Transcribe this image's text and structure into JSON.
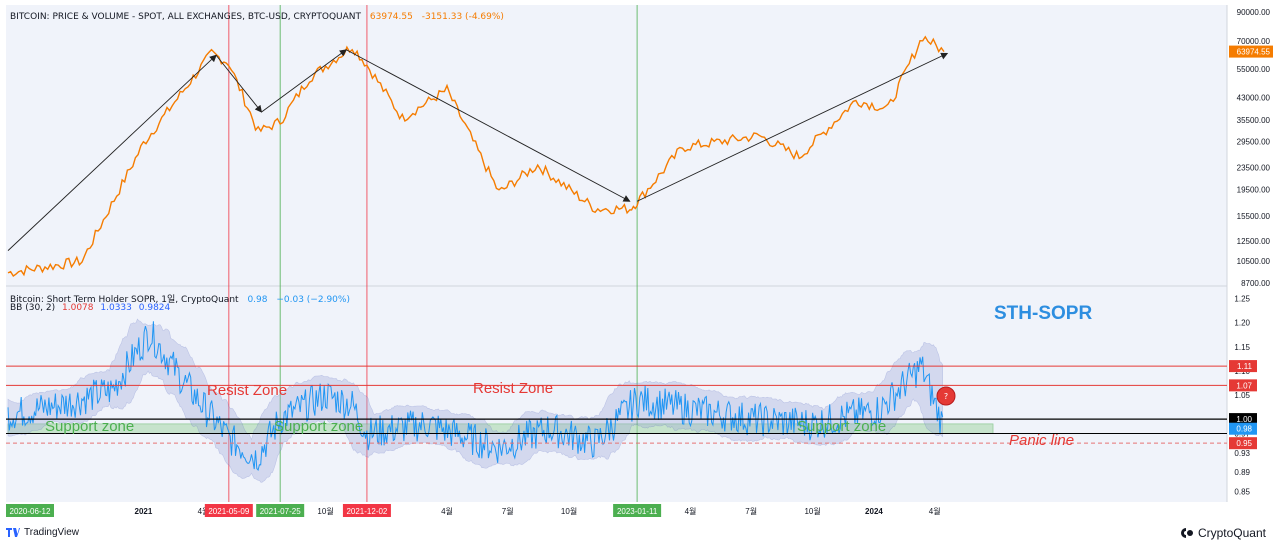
{
  "price_panel": {
    "legend": "BITCOIN: PRICE & VOLUME - SPOT, ALL EXCHANGES, BTC-USD, CRYPTOQUANT",
    "last_value": "63974.55",
    "change": "-3151.33 (-4.69%)",
    "last_label": "63974.55",
    "y_ticks": [
      "90000.00",
      "70000.00",
      "55000.00",
      "43000.00",
      "35500.00",
      "29500.00",
      "23500.00",
      "19500.00",
      "15500.00",
      "12500.00",
      "10500.00",
      "8700.00"
    ]
  },
  "sopr_panel": {
    "legend": "Bitcoin: Short Term Holder SOPR, 1일, CryptoQuant",
    "legend_value": "0.98",
    "legend_change": "−0.03 (−2.90%)",
    "bb_label": "BB (30, 2)",
    "bb_upper": "1.0078",
    "bb_mid": "1.0333",
    "bb_lower": "0.9824",
    "title": "STH-SOPR",
    "y_ticks": [
      "1.25",
      "1.20",
      "1.15",
      "1.10",
      "1.05",
      "1.00",
      "0.97",
      "0.93",
      "0.89",
      "0.85"
    ],
    "level_labels": [
      {
        "text": "1.11",
        "value": 1.11,
        "color": "#e53935"
      },
      {
        "text": "1.07",
        "value": 1.07,
        "color": "#e53935"
      },
      {
        "text": "1.00",
        "value": 1.0,
        "color": "#000000"
      },
      {
        "text": "0.98",
        "value": 0.98,
        "color": "#2196f3"
      },
      {
        "text": "0.95",
        "value": 0.95,
        "color": "#e53935"
      }
    ],
    "extra_tick": "0.98",
    "annotations": {
      "resist_1": "Resist Zone",
      "resist_2": "Resist Zone",
      "support_1": "Support zone",
      "support_2": "Support zone",
      "support_3": "Support zone",
      "panic": "Panic line"
    }
  },
  "time_axis": {
    "ticks": [
      "2021",
      "4월",
      "10월",
      "2",
      "4월",
      "7월",
      "10월",
      "4월",
      "7월",
      "10월",
      "2024",
      "4월"
    ],
    "highlight_dates": [
      {
        "text": "2020-06-12",
        "color": "#4caf50"
      },
      {
        "text": "2021-05-09",
        "color": "#f23645"
      },
      {
        "text": "2021-07-25",
        "color": "#4caf50"
      },
      {
        "text": "2021-12-02",
        "color": "#f23645"
      },
      {
        "text": "2023-01-11",
        "color": "#4caf50"
      }
    ]
  },
  "branding": {
    "left": "TradingView",
    "right": "CryptoQuant"
  },
  "chart_data": [
    {
      "type": "line",
      "title": "BITCOIN: PRICE & VOLUME - SPOT, ALL EXCHANGES, BTC-USD, CRYPTOQUANT",
      "scale": "log",
      "ylim": [
        8700,
        90000
      ],
      "x": [
        "2020-06-12",
        "2020-10-01",
        "2021-01-01",
        "2021-04-13",
        "2021-05-09",
        "2021-06-22",
        "2021-07-25",
        "2021-09-07",
        "2021-11-10",
        "2021-12-02",
        "2022-01-24",
        "2022-04-01",
        "2022-06-18",
        "2022-08-15",
        "2022-11-09",
        "2022-12-31",
        "2023-01-11",
        "2023-03-20",
        "2023-07-13",
        "2023-09-11",
        "2023-12-05",
        "2024-01-22",
        "2024-03-14",
        "2024-04-15"
      ],
      "values": [
        9500,
        10500,
        29000,
        63000,
        58000,
        32000,
        35000,
        51000,
        67000,
        57000,
        36000,
        46000,
        19000,
        24000,
        16500,
        16500,
        17500,
        28000,
        31000,
        25800,
        42000,
        39000,
        73000,
        63974.55
      ],
      "series_color": "#f57c00"
    },
    {
      "type": "line",
      "title": "Bitcoin: Short Term Holder SOPR, 1일, CryptoQuant",
      "ylim": [
        0.83,
        1.27
      ],
      "levels": {
        "resist_high": 1.11,
        "resist_low": 1.07,
        "one": 1.0,
        "support_band": [
          0.97,
          0.99
        ],
        "panic": 0.95
      },
      "x": [
        "2020-06-12",
        "2020-09-01",
        "2020-11-15",
        "2021-01-10",
        "2021-03-01",
        "2021-05-09",
        "2021-06-20",
        "2021-07-25",
        "2021-10-01",
        "2021-11-10",
        "2021-12-02",
        "2022-03-01",
        "2022-06-18",
        "2022-09-01",
        "2022-11-09",
        "2023-01-11",
        "2023-04-01",
        "2023-07-01",
        "2023-10-01",
        "2024-01-10",
        "2024-03-12",
        "2024-04-15"
      ],
      "values": [
        1.01,
        1.03,
        1.06,
        1.18,
        1.08,
        0.96,
        0.92,
        1.0,
        1.05,
        1.03,
        0.97,
        0.99,
        0.94,
        0.98,
        0.95,
        1.04,
        1.02,
        1.0,
        0.99,
        1.02,
        1.11,
        0.98
      ],
      "series_color": "#2196f3"
    }
  ]
}
